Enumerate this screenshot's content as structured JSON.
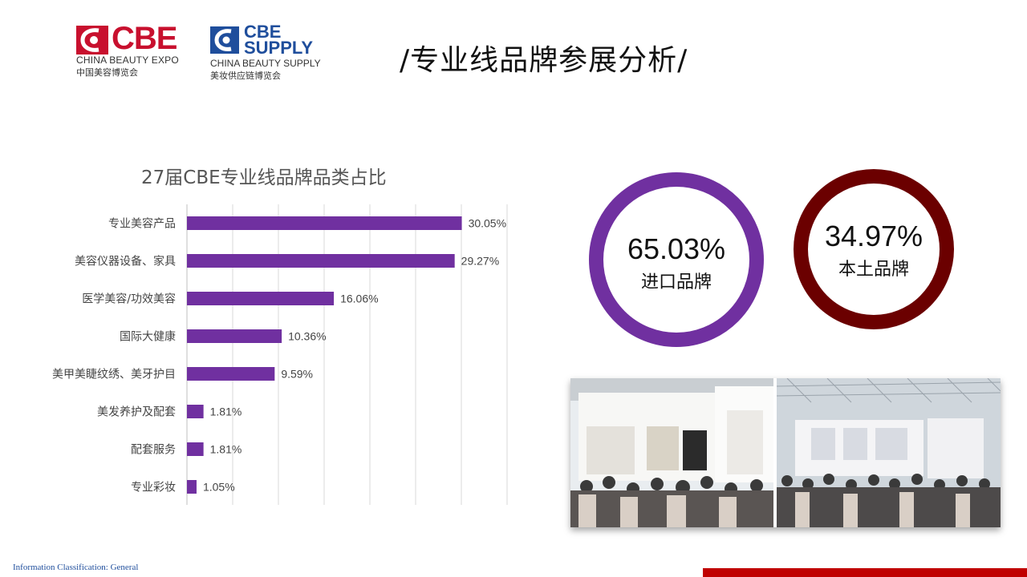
{
  "logos": {
    "cbe": {
      "brand": "CBE",
      "en": "CHINA BEAUTY EXPO",
      "cn": "中国美容博览会",
      "color": "#c8102e"
    },
    "supply": {
      "line1": "CBE",
      "line2": "SUPPLY",
      "en": "CHINA BEAUTY SUPPLY",
      "cn": "美妆供应链博览会",
      "color": "#1f4e9c"
    }
  },
  "page_title": "/专业线品牌参展分析/",
  "chart_data": [
    {
      "type": "bar",
      "orientation": "horizontal",
      "title": "27届CBE专业线品牌品类占比",
      "categories": [
        "专业美容产品",
        "美容仪器设备、家具",
        "医学美容/功效美容",
        "国际大健康",
        "美甲美睫纹绣、美牙护目",
        "美发养护及配套",
        "配套服务",
        "专业彩妆"
      ],
      "values": [
        30.05,
        29.27,
        16.06,
        10.36,
        9.59,
        1.81,
        1.81,
        1.05
      ],
      "data_labels": [
        "30.05%",
        "29.27%",
        "16.06%",
        "10.36%",
        "9.59%",
        "1.81%",
        "1.81%",
        "1.05%"
      ],
      "xlim": [
        0,
        35
      ],
      "grid": true,
      "color": "#7030a0"
    },
    {
      "type": "pie",
      "style": "donut",
      "slices": [
        {
          "label": "进口品牌",
          "value": 65.03,
          "display": "65.03%",
          "color": "#7030a0"
        },
        {
          "label": "本土品牌",
          "value": 34.97,
          "display": "34.97%",
          "color": "#6b0000"
        }
      ]
    }
  ],
  "footer": {
    "classification": "Information Classification: General",
    "accent_color": "#c00000"
  }
}
